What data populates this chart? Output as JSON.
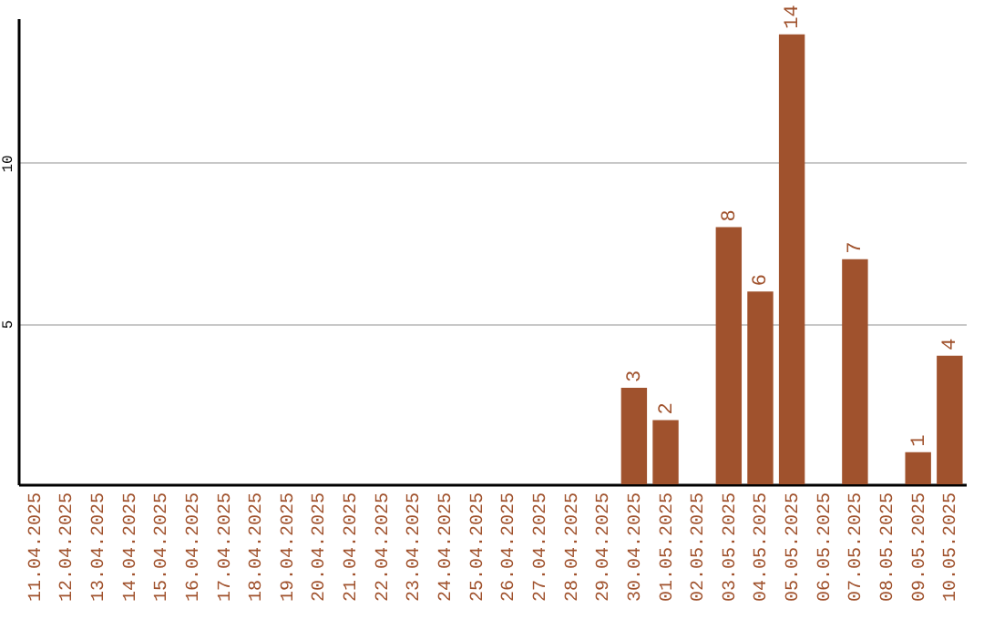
{
  "chart_data": {
    "type": "bar",
    "categories": [
      "11.04.2025",
      "12.04.2025",
      "13.04.2025",
      "14.04.2025",
      "15.04.2025",
      "16.04.2025",
      "17.04.2025",
      "18.04.2025",
      "19.04.2025",
      "20.04.2025",
      "21.04.2025",
      "22.04.2025",
      "23.04.2025",
      "24.04.2025",
      "25.04.2025",
      "26.04.2025",
      "27.04.2025",
      "28.04.2025",
      "29.04.2025",
      "30.04.2025",
      "01.05.2025",
      "02.05.2025",
      "03.05.2025",
      "04.05.2025",
      "05.05.2025",
      "06.05.2025",
      "07.05.2025",
      "08.05.2025",
      "09.05.2025",
      "10.05.2025"
    ],
    "values": [
      0,
      0,
      0,
      0,
      0,
      0,
      0,
      0,
      0,
      0,
      0,
      0,
      0,
      0,
      0,
      0,
      0,
      0,
      0,
      3,
      2,
      0,
      8,
      6,
      14,
      0,
      7,
      0,
      1,
      4
    ],
    "value_labels": [
      null,
      null,
      null,
      null,
      null,
      null,
      null,
      null,
      null,
      null,
      null,
      null,
      null,
      null,
      null,
      null,
      null,
      null,
      null,
      "3",
      "2",
      null,
      "8",
      "6",
      "14",
      null,
      "7",
      null,
      "1",
      "4"
    ],
    "color": "#a0522d",
    "ylim": [
      0,
      14.5
    ],
    "yticks": [
      5,
      10
    ],
    "grid": "y"
  }
}
